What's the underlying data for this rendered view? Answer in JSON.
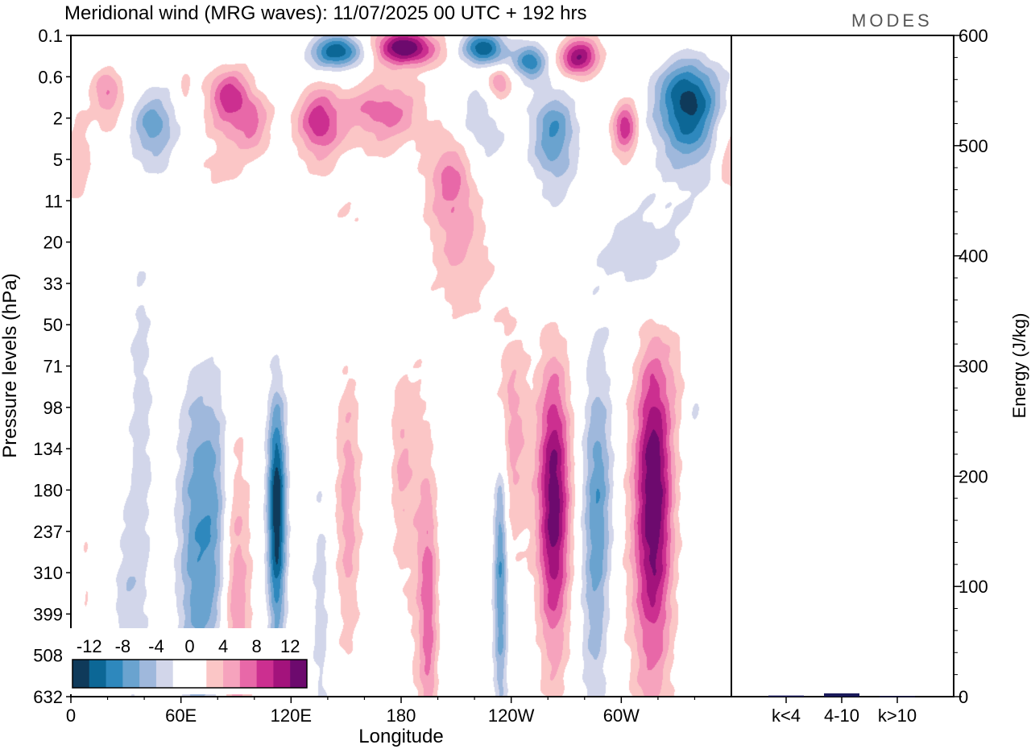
{
  "title": "Meridional wind (MRG waves):  11/07/2025  00 UTC  + 192 hrs",
  "logo": "MODES",
  "chart_data": [
    {
      "type": "heatmap",
      "title": "Meridional wind (MRG waves)",
      "xlabel": "Longitude",
      "ylabel": "Pressure levels (hPa)",
      "x_ticks": [
        "0",
        "60E",
        "120E",
        "180",
        "120W",
        "60W"
      ],
      "x_range_deg": [
        0,
        360
      ],
      "y_ticks": [
        "0.1",
        "0.6",
        "2",
        "5",
        "11",
        "20",
        "33",
        "50",
        "71",
        "98",
        "134",
        "180",
        "237",
        "310",
        "399",
        "508",
        "632"
      ],
      "colorbar": {
        "labels": [
          "-12",
          "-8",
          "-4",
          "0",
          "4",
          "8",
          "12"
        ],
        "colors": [
          "#0f3a5a",
          "#0c6796",
          "#2e88bd",
          "#6aa3cf",
          "#9fb8dc",
          "#d2d6ea",
          "#ffffff",
          "#ffffff",
          "#fbc6c6",
          "#f6a3bd",
          "#e868a8",
          "#cc2f90",
          "#a3137c",
          "#6d0a6e"
        ]
      },
      "blobs": [
        {
          "lon": 20,
          "lev": 1.0,
          "value": 6,
          "wlon": 9,
          "wlev": 0.9
        },
        {
          "lon": 4,
          "lev": 4.0,
          "value": 4,
          "wlon": 7,
          "wlev": 1.1
        },
        {
          "lon": 45,
          "lev": 2.3,
          "value": -7,
          "wlon": 12,
          "wlev": 0.9
        },
        {
          "lon": 62,
          "lev": 0.8,
          "value": 3,
          "wlon": 3,
          "wlev": 0.6
        },
        {
          "lon": 86,
          "lev": 1.1,
          "value": 9,
          "wlon": 12,
          "wlev": 1.0
        },
        {
          "lon": 100,
          "lev": 2.2,
          "value": 5,
          "wlon": 10,
          "wlev": 0.8
        },
        {
          "lon": 135,
          "lev": 2.1,
          "value": 9,
          "wlon": 12,
          "wlev": 0.9
        },
        {
          "lon": 170,
          "lev": 1.6,
          "value": 7,
          "wlon": 22,
          "wlev": 0.9
        },
        {
          "lon": 145,
          "lev": 0.2,
          "value": -12,
          "wlon": 14,
          "wlev": 0.7
        },
        {
          "lon": 182,
          "lev": 0.17,
          "value": 14,
          "wlon": 17,
          "wlev": 0.8
        },
        {
          "lon": 225,
          "lev": 0.17,
          "value": -12,
          "wlon": 11,
          "wlev": 0.7
        },
        {
          "lon": 250,
          "lev": 0.3,
          "value": -10,
          "wlon": 9,
          "wlev": 0.7
        },
        {
          "lon": 277,
          "lev": 0.25,
          "value": 12,
          "wlon": 11,
          "wlev": 0.8
        },
        {
          "lon": 233,
          "lev": 0.7,
          "value": 6,
          "wlon": 7,
          "wlev": 0.6
        },
        {
          "lon": 208,
          "lev": 7.0,
          "value": 7,
          "wlon": 14,
          "wlev": 1.0
        },
        {
          "lon": 222,
          "lev": 2.6,
          "value": -4,
          "wlon": 14,
          "wlev": 1.2
        },
        {
          "lon": 263,
          "lev": 2.8,
          "value": -8,
          "wlon": 12,
          "wlev": 1.1
        },
        {
          "lon": 302,
          "lev": 2.4,
          "value": 9,
          "wlon": 7,
          "wlev": 0.7
        },
        {
          "lon": 336,
          "lev": 1.3,
          "value": -13,
          "wlon": 17,
          "wlev": 1.4
        },
        {
          "lon": 355,
          "lev": 4.5,
          "value": 3,
          "wlon": 5,
          "wlev": 0.8
        },
        {
          "lon": 215,
          "lev": 25,
          "value": 3,
          "wlon": 18,
          "wlev": 0.9
        },
        {
          "lon": 310,
          "lev": 22,
          "value": -3,
          "wlon": 28,
          "wlev": 0.8
        },
        {
          "lon": 155,
          "lev": 13,
          "value": 2,
          "wlon": 14,
          "wlev": 0.5
        },
        {
          "lon": 78,
          "lev": 6.3,
          "value": 2,
          "wlon": 18,
          "wlev": 0.6
        },
        {
          "lon": 38,
          "lev": 115,
          "value": -3,
          "wlon": 7,
          "wlev": 1.8
        },
        {
          "lon": 68,
          "lev": 260,
          "value": -7,
          "wlon": 10,
          "wlev": 1.2
        },
        {
          "lon": 79,
          "lev": 210,
          "value": -5,
          "wlon": 8,
          "wlev": 1.0
        },
        {
          "lon": 90,
          "lev": 420,
          "value": 6,
          "wlon": 8,
          "wlev": 1.2
        },
        {
          "lon": 112,
          "lev": 205,
          "value": -14,
          "wlon": 5,
          "wlev": 0.8
        },
        {
          "lon": 136,
          "lev": 380,
          "value": -3,
          "wlon": 5,
          "wlev": 0.9
        },
        {
          "lon": 151,
          "lev": 190,
          "value": 5,
          "wlon": 7,
          "wlev": 1.0
        },
        {
          "lon": 195,
          "lev": 390,
          "value": 6,
          "wlon": 5,
          "wlev": 0.8
        },
        {
          "lon": 234,
          "lev": 290,
          "value": -9,
          "wlon": 4,
          "wlev": 0.9
        },
        {
          "lon": 263,
          "lev": 225,
          "value": 15,
          "wlon": 9,
          "wlev": 1.1
        },
        {
          "lon": 240,
          "lev": 120,
          "value": 5,
          "wlon": 10,
          "wlev": 0.9
        },
        {
          "lon": 287,
          "lev": 260,
          "value": -9,
          "wlon": 8,
          "wlev": 1.2
        },
        {
          "lon": 318,
          "lev": 170,
          "value": 11,
          "wlon": 10,
          "wlev": 1.1
        },
        {
          "lon": 314,
          "lev": 250,
          "value": 4,
          "wlon": 12,
          "wlev": 1.2
        },
        {
          "lon": 30,
          "lev": 360,
          "value": -3,
          "wlon": 7,
          "wlev": 0.6
        },
        {
          "lon": 190,
          "lev": 220,
          "value": 3,
          "wlon": 7,
          "wlev": 1.3
        },
        {
          "lon": 180,
          "lev": 150,
          "value": 4,
          "wlon": 6,
          "wlev": 0.8
        },
        {
          "lon": 340,
          "lev": 120,
          "value": -2,
          "wlon": 4,
          "wlev": 0.6
        },
        {
          "lon": 330,
          "lev": 70,
          "value": 2,
          "wlon": 6,
          "wlev": 0.4
        },
        {
          "lon": 8,
          "lev": 330,
          "value": 2,
          "wlon": 3,
          "wlev": 0.5
        },
        {
          "lon": 263,
          "lev": 450,
          "value": -4,
          "wlon": 10,
          "wlev": 0.8
        },
        {
          "lon": 290,
          "lev": 440,
          "value": 3,
          "wlon": 8,
          "wlev": 0.7
        }
      ]
    },
    {
      "type": "bar",
      "ylabel": "Energy (J/kg)",
      "categories": [
        "k<4",
        "4-10",
        "k>10"
      ],
      "values": [
        1,
        3,
        0.5
      ],
      "ylim": [
        0,
        600
      ],
      "y_ticks": [
        "0",
        "100",
        "200",
        "300",
        "400",
        "500",
        "600"
      ]
    }
  ]
}
